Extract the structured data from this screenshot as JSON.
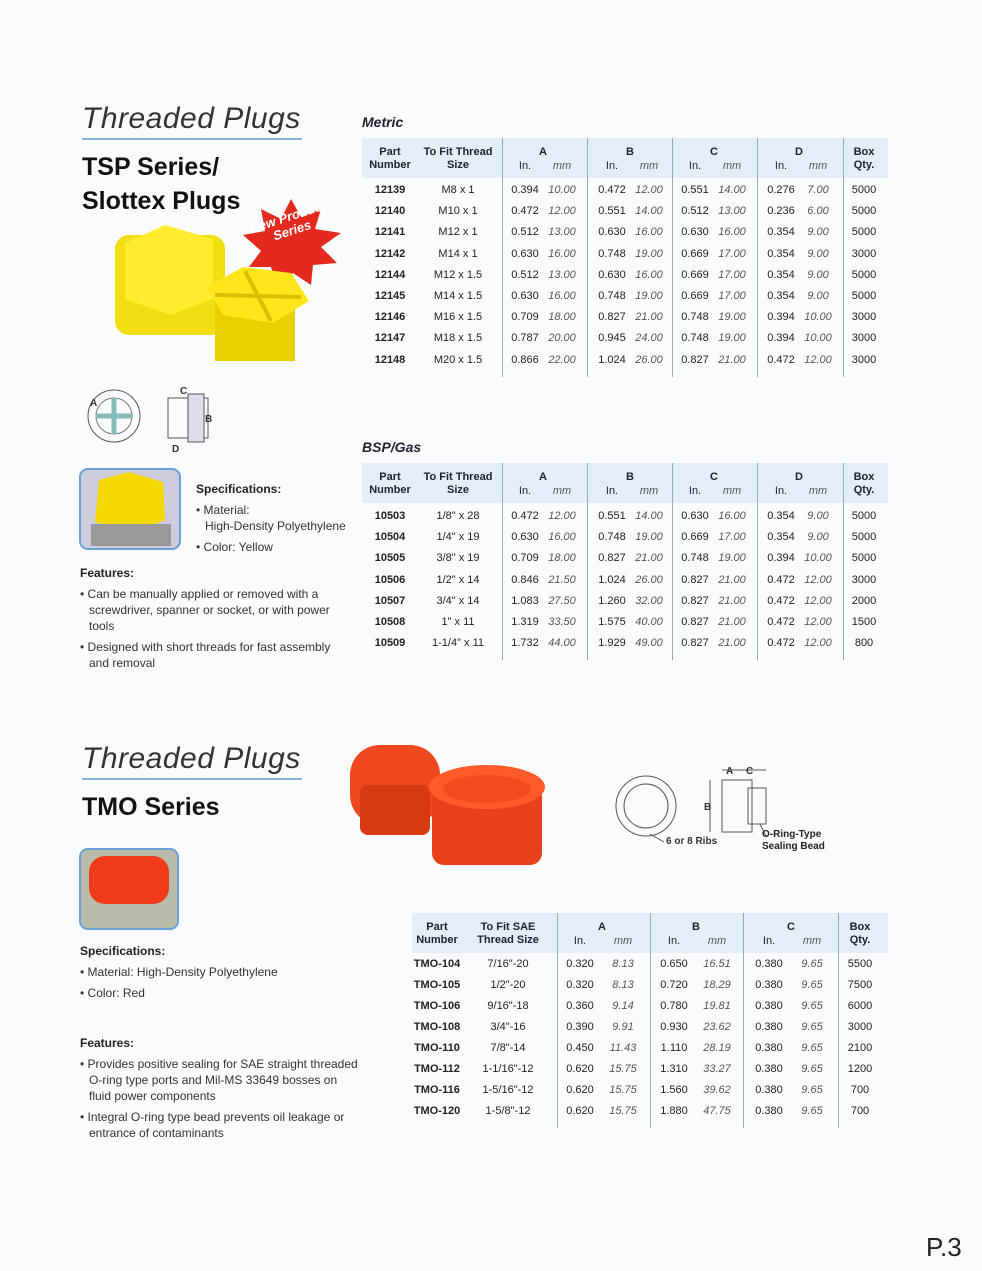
{
  "sections": [
    {
      "title": "Threaded Plugs",
      "series": [
        "TSP Series/",
        "Slottex Plugs"
      ],
      "badge": "New Product Series",
      "diagram": {
        "labels": [
          "A",
          "C",
          "B",
          "D"
        ]
      },
      "specifications": {
        "heading": "Specifications:",
        "items": [
          {
            "label": "Material:",
            "value": "High-Density Polyethylene"
          },
          {
            "label": "Color: Yellow"
          }
        ]
      },
      "features": {
        "heading": "Features:",
        "items": [
          "Can be manually applied or removed with a screwdriver, spanner or socket, or with power tools",
          "Designed with short threads for fast assembly and removal"
        ]
      },
      "tables": [
        {
          "label": "Metric",
          "headers": [
            "Part Number",
            "To Fit Thread Size",
            "A",
            "B",
            "C",
            "D",
            "Box Qty."
          ],
          "units": [
            "In.",
            "mm",
            "In.",
            "mm",
            "In.",
            "mm",
            "In.",
            "mm"
          ],
          "rows": [
            [
              "12139",
              "M8 x 1",
              "0.394",
              "10.00",
              "0.472",
              "12.00",
              "0.551",
              "14.00",
              "0.276",
              "7.00",
              "5000"
            ],
            [
              "12140",
              "M10 x 1",
              "0.472",
              "12.00",
              "0.551",
              "14.00",
              "0.512",
              "13.00",
              "0.236",
              "6.00",
              "5000"
            ],
            [
              "12141",
              "M12 x 1",
              "0.512",
              "13.00",
              "0.630",
              "16.00",
              "0.630",
              "16.00",
              "0.354",
              "9.00",
              "5000"
            ],
            [
              "12142",
              "M14 x 1",
              "0.630",
              "16.00",
              "0.748",
              "19.00",
              "0.669",
              "17.00",
              "0.354",
              "9.00",
              "3000"
            ],
            [
              "12144",
              "M12 x 1.5",
              "0.512",
              "13.00",
              "0.630",
              "16.00",
              "0.669",
              "17.00",
              "0.354",
              "9.00",
              "5000"
            ],
            [
              "12145",
              "M14 x 1.5",
              "0.630",
              "16.00",
              "0.748",
              "19.00",
              "0.669",
              "17.00",
              "0.354",
              "9.00",
              "5000"
            ],
            [
              "12146",
              "M16 x 1.5",
              "0.709",
              "18.00",
              "0.827",
              "21.00",
              "0.748",
              "19.00",
              "0.394",
              "10.00",
              "3000"
            ],
            [
              "12147",
              "M18 x 1.5",
              "0.787",
              "20.00",
              "0.945",
              "24.00",
              "0.748",
              "19.00",
              "0.394",
              "10.00",
              "3000"
            ],
            [
              "12148",
              "M20 x 1.5",
              "0.866",
              "22.00",
              "1.024",
              "26.00",
              "0.827",
              "21.00",
              "0.472",
              "12.00",
              "3000"
            ]
          ]
        },
        {
          "label": "BSP/Gas",
          "headers": [
            "Part Number",
            "To Fit Thread Size",
            "A",
            "B",
            "C",
            "D",
            "Box Qty."
          ],
          "units": [
            "In.",
            "mm",
            "In.",
            "mm",
            "In.",
            "mm",
            "In.",
            "mm"
          ],
          "rows": [
            [
              "10503",
              "1/8\" x 28",
              "0.472",
              "12.00",
              "0.551",
              "14.00",
              "0.630",
              "16.00",
              "0.354",
              "9.00",
              "5000"
            ],
            [
              "10504",
              "1/4\" x 19",
              "0.630",
              "16.00",
              "0.748",
              "19.00",
              "0.669",
              "17.00",
              "0.354",
              "9.00",
              "5000"
            ],
            [
              "10505",
              "3/8\" x 19",
              "0.709",
              "18.00",
              "0.827",
              "21.00",
              "0.748",
              "19.00",
              "0.394",
              "10.00",
              "5000"
            ],
            [
              "10506",
              "1/2\" x 14",
              "0.846",
              "21.50",
              "1.024",
              "26.00",
              "0.827",
              "21.00",
              "0.472",
              "12.00",
              "3000"
            ],
            [
              "10507",
              "3/4\" x 14",
              "1.083",
              "27.50",
              "1.260",
              "32.00",
              "0.827",
              "21.00",
              "0.472",
              "12.00",
              "2000"
            ],
            [
              "10508",
              "1\" x 11",
              "1.319",
              "33.50",
              "1.575",
              "40.00",
              "0.827",
              "21.00",
              "0.472",
              "12.00",
              "1500"
            ],
            [
              "10509",
              "1-1/4\" x 11",
              "1.732",
              "44.00",
              "1.929",
              "49.00",
              "0.827",
              "21.00",
              "0.472",
              "12.00",
              "800"
            ]
          ]
        }
      ]
    },
    {
      "title": "Threaded Plugs",
      "series": [
        "TMO Series"
      ],
      "diagram": {
        "labels": [
          "A",
          "C",
          "B",
          "6 or 8 Ribs",
          "O-Ring-Type Sealing Bead"
        ]
      },
      "specifications": {
        "heading": "Specifications:",
        "items": [
          {
            "label": "Material: High-Density Polyethylene"
          },
          {
            "label": "Color: Red"
          }
        ]
      },
      "features": {
        "heading": "Features:",
        "items": [
          "Provides positive sealing for SAE straight threaded O-ring type ports and Mil-MS 33649 bosses on fluid power components",
          "Integral O-ring type bead prevents oil leakage or entrance of contaminants"
        ]
      },
      "tables": [
        {
          "headers": [
            "Part Number",
            "To Fit SAE Thread Size",
            "A",
            "B",
            "C",
            "Box Qty."
          ],
          "units": [
            "In.",
            "mm",
            "In.",
            "mm",
            "In.",
            "mm"
          ],
          "rows": [
            [
              "TMO-104",
              "7/16\"-20",
              "0.320",
              "8.13",
              "0.650",
              "16.51",
              "0.380",
              "9.65",
              "5500"
            ],
            [
              "TMO-105",
              "1/2\"-20",
              "0.320",
              "8.13",
              "0.720",
              "18.29",
              "0.380",
              "9.65",
              "7500"
            ],
            [
              "TMO-106",
              "9/16\"-18",
              "0.360",
              "9.14",
              "0.780",
              "19.81",
              "0.380",
              "9.65",
              "6000"
            ],
            [
              "TMO-108",
              "3/4\"-16",
              "0.390",
              "9.91",
              "0.930",
              "23.62",
              "0.380",
              "9.65",
              "3000"
            ],
            [
              "TMO-110",
              "7/8\"-14",
              "0.450",
              "11.43",
              "1.110",
              "28.19",
              "0.380",
              "9.65",
              "2100"
            ],
            [
              "TMO-112",
              "1-1/16\"-12",
              "0.620",
              "15.75",
              "1.310",
              "33.27",
              "0.380",
              "9.65",
              "1200"
            ],
            [
              "TMO-116",
              "1-5/16\"-12",
              "0.620",
              "15.75",
              "1.560",
              "39.62",
              "0.380",
              "9.65",
              "700"
            ],
            [
              "TMO-120",
              "1-5/8\"-12",
              "0.620",
              "15.75",
              "1.880",
              "47.75",
              "0.380",
              "9.65",
              "700"
            ]
          ]
        }
      ]
    }
  ],
  "page_number": "P.3"
}
